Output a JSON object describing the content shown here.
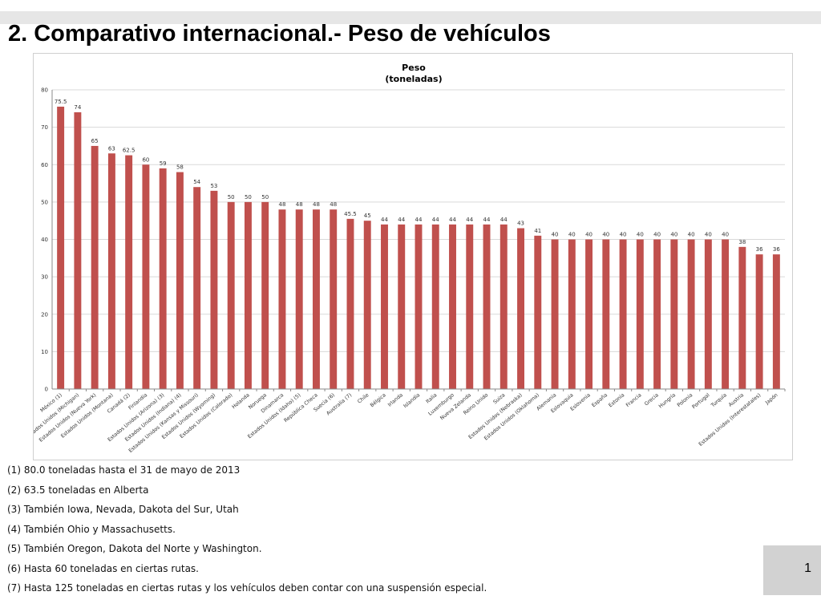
{
  "slide": {
    "title": "2.  Comparativo internacional.- Peso de vehículos",
    "page_number": "1"
  },
  "footnotes": [
    "(1) 80.0 toneladas hasta el 31 de mayo de 2013",
    "(2) 63.5 toneladas en Alberta",
    "(3) También Iowa, Nevada, Dakota del Sur, Utah",
    "(4) También Ohio y Massachusetts.",
    "(5) También Oregon, Dakota del Norte y Washington.",
    "(6) Hasta 60 toneladas en ciertas rutas.",
    "(7) Hasta 125 toneladas en ciertas rutas y los vehículos deben contar con una suspensión especial."
  ],
  "colors": {
    "bar": "#c0504d",
    "grid": "#d9d9d9",
    "axis": "#888888"
  },
  "chart_data": {
    "type": "bar",
    "title": "Peso",
    "subtitle": "(toneladas)",
    "ylim": [
      0,
      80
    ],
    "yticks": [
      0,
      10,
      20,
      30,
      40,
      50,
      60,
      70,
      80
    ],
    "grid": true,
    "legend": "none",
    "categories": [
      "México (1)",
      "Estados Unidos (Michigan)",
      "Estados Unidos (Nueva York)",
      "Estados Unidos (Montana)",
      "Canadá (2)",
      "Finlandia",
      "Estados Unidos (Arizona) (3)",
      "Estados Unidos (Indiana) (4)",
      "Estados Unidos (Kansas y Missouri)",
      "Estados Unidos (Wyoming)",
      "Estados Unidos (Colorado)",
      "Holanda",
      "Noruega",
      "Dinamarca",
      "Estados Unidos (Idaho) (5)",
      "República Checa",
      "Suecia (6)",
      "Australia (7)",
      "Chile",
      "Bélgica",
      "Irlanda",
      "Islandia",
      "Italia",
      "Luxemburgo",
      "Nueva Zelanda",
      "Reino Unido",
      "Suiza",
      "Estados Unidos (Nebraska)",
      "Estados Unidos (Oklahoma)",
      "Alemania",
      "Eslovaquia",
      "Eslovenia",
      "España",
      "Estonia",
      "Francia",
      "Grecia",
      "Hungría",
      "Polonia",
      "Portugal",
      "Turquía",
      "Austria",
      "Estados Unidos (Interestatales)",
      "Japón"
    ],
    "values": [
      75.5,
      74,
      65,
      63,
      62.5,
      60,
      59,
      58,
      54,
      53,
      50,
      50,
      50,
      48,
      48,
      48,
      48,
      45.5,
      45,
      44,
      44,
      44,
      44,
      44,
      44,
      44,
      44,
      43,
      41,
      40,
      40,
      40,
      40,
      40,
      40,
      40,
      40,
      40,
      40,
      40,
      38,
      36,
      36
    ]
  }
}
